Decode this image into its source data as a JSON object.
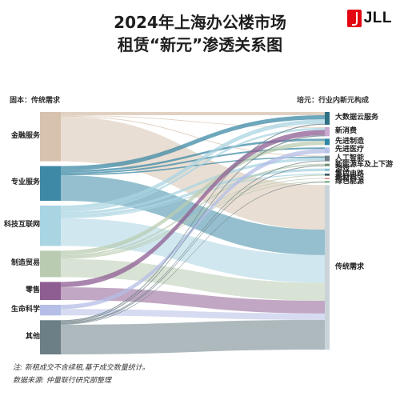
{
  "header": {
    "title_line1": "2024年上海办公楼市场",
    "title_line2": "租赁“新元”渗透关系图",
    "brand": "JLL"
  },
  "columns": {
    "left_header": "固本：传统需求",
    "right_header": "培元：行业内新元构成"
  },
  "colors": {
    "traditional": "#c9d3d8",
    "accent_red": "#e30613"
  },
  "chart_data": {
    "type": "sankey",
    "sources": [
      {
        "name": "金融服务",
        "color": "#d7c2ae"
      },
      {
        "name": "专业服务",
        "color": "#3e8aa6"
      },
      {
        "name": "科技互联网",
        "color": "#a9d4e2"
      },
      {
        "name": "制造贸易",
        "color": "#b9ccb2"
      },
      {
        "name": "零售",
        "color": "#8e5e93"
      },
      {
        "name": "生命科学",
        "color": "#b4bee6"
      },
      {
        "name": "其他",
        "color": "#6c7f86"
      }
    ],
    "targets": [
      {
        "name": "大数据云服务",
        "color": "#2e6f83"
      },
      {
        "name": "新消费",
        "color": "#c8a9cf"
      },
      {
        "name": "先进制造",
        "color": "#2f86a7"
      },
      {
        "name": "先进医疗",
        "color": "#b9c3e8"
      },
      {
        "name": "人工智能",
        "color": "#6e7f87"
      },
      {
        "name": "新能源车及上下游",
        "color": "#6a8f72"
      },
      {
        "name": "游戏",
        "color": "#8fc3d6"
      },
      {
        "name": "集成电路",
        "color": "#3f5a66"
      },
      {
        "name": "新材料",
        "color": "#c44a3c"
      },
      {
        "name": "绿色能源",
        "color": "#5c9a6a"
      },
      {
        "name": "传统需求",
        "color": "#c9d3d8"
      }
    ],
    "links": [
      {
        "source": "金融服务",
        "target": "传统需求",
        "value": 42
      },
      {
        "source": "金融服务",
        "target": "大数据云服务",
        "value": 3
      },
      {
        "source": "金融服务",
        "target": "新消费",
        "value": 0.6
      },
      {
        "source": "金融服务",
        "target": "人工智能",
        "value": 0.8
      },
      {
        "source": "专业服务",
        "target": "传统需求",
        "value": 24
      },
      {
        "source": "专业服务",
        "target": "大数据云服务",
        "value": 4
      },
      {
        "source": "专业服务",
        "target": "先进制造",
        "value": 2
      },
      {
        "source": "专业服务",
        "target": "先进医疗",
        "value": 1.5
      },
      {
        "source": "专业服务",
        "target": "人工智能",
        "value": 1.2
      },
      {
        "source": "科技互联网",
        "target": "传统需求",
        "value": 26
      },
      {
        "source": "科技互联网",
        "target": "大数据云服务",
        "value": 4
      },
      {
        "source": "科技互联网",
        "target": "新消费",
        "value": 2
      },
      {
        "source": "科技互联网",
        "target": "人工智能",
        "value": 2.5
      },
      {
        "source": "科技互联网",
        "target": "游戏",
        "value": 2.5
      },
      {
        "source": "科技互联网",
        "target": "集成电路",
        "value": 1
      },
      {
        "source": "制造贸易",
        "target": "传统需求",
        "value": 17
      },
      {
        "source": "制造贸易",
        "target": "先进制造",
        "value": 4
      },
      {
        "source": "制造贸易",
        "target": "新能源车及上下游",
        "value": 1.5
      },
      {
        "source": "制造贸易",
        "target": "集成电路",
        "value": 1
      },
      {
        "source": "制造贸易",
        "target": "新材料",
        "value": 0.6
      },
      {
        "source": "制造贸易",
        "target": "绿色能源",
        "value": 0.8
      },
      {
        "source": "零售",
        "target": "传统需求",
        "value": 12
      },
      {
        "source": "零售",
        "target": "新消费",
        "value": 5
      },
      {
        "source": "生命科学",
        "target": "传统需求",
        "value": 6
      },
      {
        "source": "生命科学",
        "target": "先进医疗",
        "value": 4
      },
      {
        "source": "其他",
        "target": "传统需求",
        "value": 28
      },
      {
        "source": "其他",
        "target": "大数据云服务",
        "value": 1
      },
      {
        "source": "其他",
        "target": "新消费",
        "value": 1
      },
      {
        "source": "其他",
        "target": "人工智能",
        "value": 0.8
      },
      {
        "source": "其他",
        "target": "新能源车及上下游",
        "value": 0.8
      },
      {
        "source": "其他",
        "target": "绿色能源",
        "value": 0.6
      }
    ]
  },
  "footer": {
    "note": "注: 新租成交不含续租,基于成交数量统计。",
    "source": "数据来源: 仲量联行研究部整理"
  }
}
